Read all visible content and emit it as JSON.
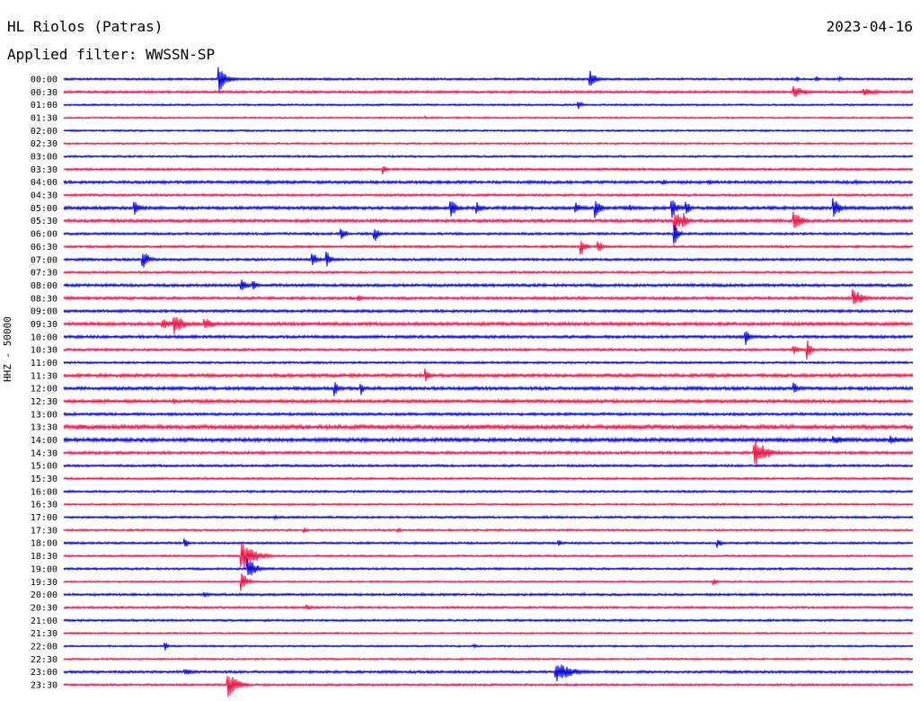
{
  "header": {
    "station": "HL Riolos (Patras)",
    "date": "2023-04-16",
    "filter": "Applied filter: WWSSN-SP",
    "channel_label": "HHZ - 50000"
  },
  "colors": {
    "even_row": "#0000dd",
    "odd_row": "#ee1144"
  },
  "chart_data": {
    "type": "line",
    "title": "HL Riolos (Patras)",
    "subtitle": "Applied filter: WWSSN-SP",
    "ylabel": "HHZ - 50000",
    "xlabel": "",
    "x_unit": "minutes",
    "xlim": [
      0,
      30
    ],
    "rows": [
      "00:00",
      "00:30",
      "01:00",
      "01:30",
      "02:00",
      "02:30",
      "03:00",
      "03:30",
      "04:00",
      "04:30",
      "05:00",
      "05:30",
      "06:00",
      "06:30",
      "07:00",
      "07:30",
      "08:00",
      "08:30",
      "09:00",
      "09:30",
      "10:00",
      "10:30",
      "11:00",
      "11:30",
      "12:00",
      "12:30",
      "13:00",
      "13:30",
      "14:00",
      "14:30",
      "15:00",
      "15:30",
      "16:00",
      "16:30",
      "17:00",
      "17:30",
      "18:00",
      "18:30",
      "19:00",
      "19:30",
      "20:00",
      "20:30",
      "21:00",
      "21:30",
      "22:00",
      "22:30",
      "23:00",
      "23:30"
    ],
    "row_noise": [
      1.2,
      1.4,
      1.0,
      0.9,
      1.0,
      1.0,
      1.1,
      1.3,
      1.6,
      1.3,
      1.8,
      1.8,
      1.3,
      1.3,
      1.4,
      1.3,
      1.6,
      1.6,
      1.5,
      1.9,
      1.6,
      1.4,
      1.2,
      1.9,
      1.8,
      1.9,
      1.5,
      2.4,
      2.1,
      1.6,
      1.3,
      1.2,
      1.2,
      1.1,
      1.2,
      1.1,
      1.2,
      1.1,
      1.2,
      1.0,
      1.3,
      1.2,
      1.2,
      1.0,
      1.0,
      1.0,
      1.4,
      1.2
    ],
    "events": [
      {
        "row": 0,
        "t": 5.5,
        "amp": 14,
        "dur": 0.8
      },
      {
        "row": 0,
        "t": 18.6,
        "amp": 10,
        "dur": 0.6
      },
      {
        "row": 0,
        "t": 25.9,
        "amp": 3,
        "dur": 0.3
      },
      {
        "row": 0,
        "t": 26.6,
        "amp": 3,
        "dur": 0.3
      },
      {
        "row": 0,
        "t": 27.4,
        "amp": 3,
        "dur": 0.4
      },
      {
        "row": 1,
        "t": 25.8,
        "amp": 7,
        "dur": 1.2
      },
      {
        "row": 1,
        "t": 28.3,
        "amp": 4,
        "dur": 2.0
      },
      {
        "row": 1,
        "t": 30.0,
        "amp": 4,
        "dur": 0.6
      },
      {
        "row": 2,
        "t": 18.2,
        "amp": 5,
        "dur": 0.4
      },
      {
        "row": 3,
        "t": 12.8,
        "amp": 2,
        "dur": 0.3
      },
      {
        "row": 7,
        "t": 11.3,
        "amp": 6,
        "dur": 0.4
      },
      {
        "row": 8,
        "t": 7.2,
        "amp": 2,
        "dur": 1.0
      },
      {
        "row": 8,
        "t": 16.4,
        "amp": 2,
        "dur": 1.0
      },
      {
        "row": 8,
        "t": 21.2,
        "amp": 3,
        "dur": 0.5
      },
      {
        "row": 8,
        "t": 22.8,
        "amp": 3,
        "dur": 0.6
      },
      {
        "row": 8,
        "t": 28.0,
        "amp": 2,
        "dur": 1.2
      },
      {
        "row": 10,
        "t": 2.5,
        "amp": 9,
        "dur": 0.6
      },
      {
        "row": 10,
        "t": 13.7,
        "amp": 12,
        "dur": 0.5
      },
      {
        "row": 10,
        "t": 14.6,
        "amp": 8,
        "dur": 0.5
      },
      {
        "row": 10,
        "t": 18.1,
        "amp": 8,
        "dur": 0.4
      },
      {
        "row": 10,
        "t": 18.8,
        "amp": 12,
        "dur": 0.5
      },
      {
        "row": 10,
        "t": 20.0,
        "amp": 4,
        "dur": 0.4
      },
      {
        "row": 10,
        "t": 20.9,
        "amp": 3,
        "dur": 0.4
      },
      {
        "row": 10,
        "t": 21.5,
        "amp": 12,
        "dur": 0.6
      },
      {
        "row": 10,
        "t": 22.0,
        "amp": 8,
        "dur": 0.5
      },
      {
        "row": 10,
        "t": 27.2,
        "amp": 12,
        "dur": 0.7
      },
      {
        "row": 11,
        "t": 21.6,
        "amp": 14,
        "dur": 0.6
      },
      {
        "row": 11,
        "t": 21.9,
        "amp": 10,
        "dur": 0.5
      },
      {
        "row": 11,
        "t": 25.8,
        "amp": 12,
        "dur": 0.8
      },
      {
        "row": 12,
        "t": 9.8,
        "amp": 10,
        "dur": 0.4
      },
      {
        "row": 12,
        "t": 11.0,
        "amp": 9,
        "dur": 0.4
      },
      {
        "row": 12,
        "t": 21.6,
        "amp": 12,
        "dur": 0.4
      },
      {
        "row": 13,
        "t": 18.3,
        "amp": 10,
        "dur": 0.4
      },
      {
        "row": 13,
        "t": 18.9,
        "amp": 8,
        "dur": 0.4
      },
      {
        "row": 14,
        "t": 2.8,
        "amp": 12,
        "dur": 0.6
      },
      {
        "row": 14,
        "t": 8.8,
        "amp": 9,
        "dur": 0.5
      },
      {
        "row": 14,
        "t": 9.3,
        "amp": 9,
        "dur": 0.5
      },
      {
        "row": 16,
        "t": 6.3,
        "amp": 9,
        "dur": 0.5
      },
      {
        "row": 16,
        "t": 6.7,
        "amp": 8,
        "dur": 0.4
      },
      {
        "row": 17,
        "t": 10.4,
        "amp": 4,
        "dur": 0.6
      },
      {
        "row": 17,
        "t": 27.9,
        "amp": 12,
        "dur": 0.9
      },
      {
        "row": 19,
        "t": 3.5,
        "amp": 6,
        "dur": 1.2
      },
      {
        "row": 19,
        "t": 3.9,
        "amp": 14,
        "dur": 0.9
      },
      {
        "row": 19,
        "t": 5.0,
        "amp": 7,
        "dur": 1.0
      },
      {
        "row": 20,
        "t": 24.1,
        "amp": 9,
        "dur": 0.5
      },
      {
        "row": 21,
        "t": 25.8,
        "amp": 6,
        "dur": 0.6
      },
      {
        "row": 21,
        "t": 26.3,
        "amp": 12,
        "dur": 0.4
      },
      {
        "row": 23,
        "t": 12.8,
        "amp": 8,
        "dur": 0.4
      },
      {
        "row": 24,
        "t": 9.6,
        "amp": 9,
        "dur": 0.3
      },
      {
        "row": 24,
        "t": 10.5,
        "amp": 8,
        "dur": 0.3
      },
      {
        "row": 24,
        "t": 25.8,
        "amp": 8,
        "dur": 0.5
      },
      {
        "row": 25,
        "t": 3.9,
        "amp": 4,
        "dur": 0.5
      },
      {
        "row": 27,
        "t": 0.5,
        "amp": 4,
        "dur": 1.5
      },
      {
        "row": 28,
        "t": 27.2,
        "amp": 5,
        "dur": 2.0
      },
      {
        "row": 28,
        "t": 29.2,
        "amp": 5,
        "dur": 1.6
      },
      {
        "row": 29,
        "t": 24.4,
        "amp": 18,
        "dur": 1.2
      },
      {
        "row": 34,
        "t": 7.5,
        "amp": 3,
        "dur": 0.3
      },
      {
        "row": 35,
        "t": 8.5,
        "amp": 4,
        "dur": 0.3
      },
      {
        "row": 35,
        "t": 11.8,
        "amp": 4,
        "dur": 0.3
      },
      {
        "row": 36,
        "t": 4.3,
        "amp": 6,
        "dur": 0.3
      },
      {
        "row": 36,
        "t": 17.5,
        "amp": 4,
        "dur": 0.3
      },
      {
        "row": 36,
        "t": 23.1,
        "amp": 6,
        "dur": 0.4
      },
      {
        "row": 37,
        "t": 6.3,
        "amp": 18,
        "dur": 1.2
      },
      {
        "row": 38,
        "t": 6.5,
        "amp": 14,
        "dur": 0.8
      },
      {
        "row": 39,
        "t": 6.3,
        "amp": 12,
        "dur": 0.5
      },
      {
        "row": 39,
        "t": 23.0,
        "amp": 4,
        "dur": 0.3
      },
      {
        "row": 40,
        "t": 5.0,
        "amp": 3,
        "dur": 0.5
      },
      {
        "row": 41,
        "t": 8.6,
        "amp": 4,
        "dur": 0.5
      },
      {
        "row": 44,
        "t": 3.6,
        "amp": 5,
        "dur": 0.3
      },
      {
        "row": 44,
        "t": 14.5,
        "amp": 3,
        "dur": 0.3
      },
      {
        "row": 46,
        "t": 4.3,
        "amp": 4,
        "dur": 0.8
      },
      {
        "row": 46,
        "t": 17.4,
        "amp": 12,
        "dur": 1.6
      },
      {
        "row": 47,
        "t": 5.8,
        "amp": 16,
        "dur": 0.9
      }
    ]
  }
}
